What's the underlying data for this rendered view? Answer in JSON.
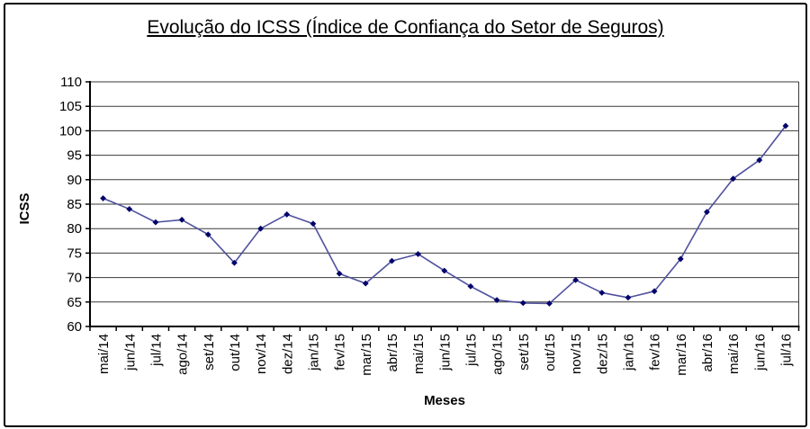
{
  "chart_data": {
    "type": "line",
    "title": "Evolução do ICSS (Índice de Confiança do Setor de Seguros)",
    "xlabel": "Meses",
    "ylabel": "ICSS",
    "categories": [
      "mai/14",
      "jun/14",
      "jul/14",
      "ago/14",
      "set/14",
      "out/14",
      "nov/14",
      "dez/14",
      "jan/15",
      "fev/15",
      "mar/15",
      "abr/15",
      "mai/15",
      "jun/15",
      "jul/15",
      "ago/15",
      "set/15",
      "out/15",
      "nov/15",
      "dez/15",
      "jan/16",
      "fev/16",
      "mar/16",
      "abr/16",
      "mai/16",
      "jun/16",
      "jul/16"
    ],
    "series": [
      {
        "name": "ICSS",
        "values": [
          86.2,
          84.0,
          81.3,
          81.8,
          78.8,
          73.0,
          80.0,
          82.9,
          81.0,
          70.8,
          68.8,
          73.4,
          74.8,
          71.4,
          68.2,
          65.4,
          64.8,
          64.7,
          69.5,
          66.9,
          65.9,
          67.2,
          73.8,
          83.4,
          90.2,
          94.0,
          101.0
        ]
      }
    ],
    "ylim": [
      60,
      110
    ],
    "ytick_step": 5,
    "grid": true,
    "legend": "none",
    "styles": {
      "line_color": "#4f519e",
      "marker_color": "#00006b",
      "marker_shape": "diamond",
      "grid_color": "#3a3a3a",
      "axis_color": "#000000",
      "background": "#ffffff"
    }
  }
}
